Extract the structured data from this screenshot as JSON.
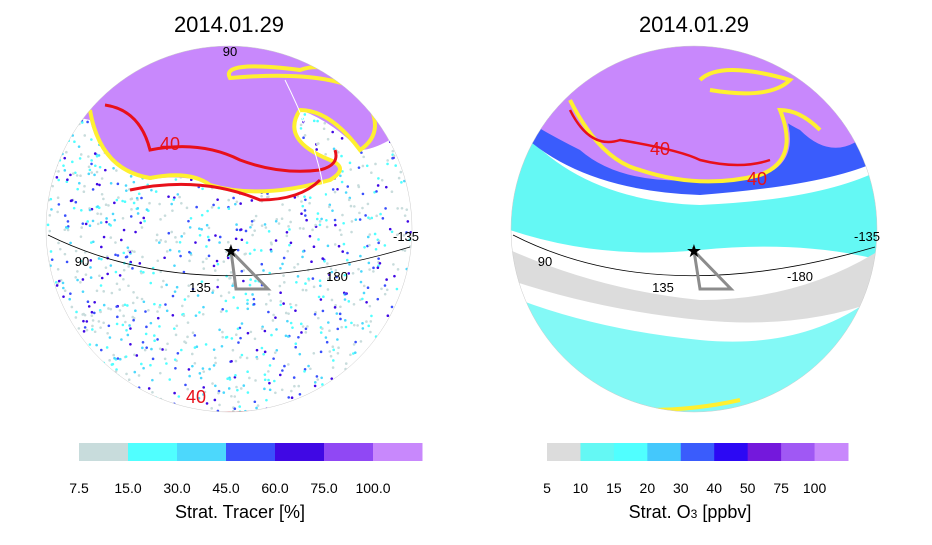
{
  "panels": [
    {
      "title": "2014.01.29",
      "longitude_labels": [
        "90",
        "90",
        "135",
        "180",
        "-135"
      ],
      "contour_labels": [
        "40",
        "40"
      ],
      "colorbar": {
        "title": "Strat. Tracer [%]",
        "ticks": [
          "7.5",
          "15.0",
          "30.0",
          "45.0",
          "60.0",
          "75.0",
          "100.0"
        ],
        "colors": [
          "#c8dcdc",
          "#50ffff",
          "#4cd8fc",
          "#3a50fc",
          "#4008e4",
          "#9048f4",
          "#c888fc"
        ]
      }
    },
    {
      "title": "2014.01.29",
      "longitude_labels": [
        "90",
        "135",
        "-180",
        "-135"
      ],
      "contour_labels": [
        "40",
        "40"
      ],
      "colorbar": {
        "title_main": "Strat. O",
        "title_sub": "3",
        "title_unit": " [ppbv]",
        "ticks": [
          "5",
          "10",
          "15",
          "20",
          "30",
          "40",
          "50",
          "75",
          "100"
        ],
        "colors": [
          "#dcdcdc",
          "#64f8f4",
          "#50ffff",
          "#44c8fc",
          "#3a5cfc",
          "#2c08f4",
          "#7418dc",
          "#a058f4",
          "#c888fc"
        ]
      }
    }
  ],
  "colors": {
    "contour_yellow": "#fff030",
    "contour_red": "#e8101a",
    "trajectory_gray": "#8c8c8c",
    "polar_purple": "#c888fc"
  }
}
